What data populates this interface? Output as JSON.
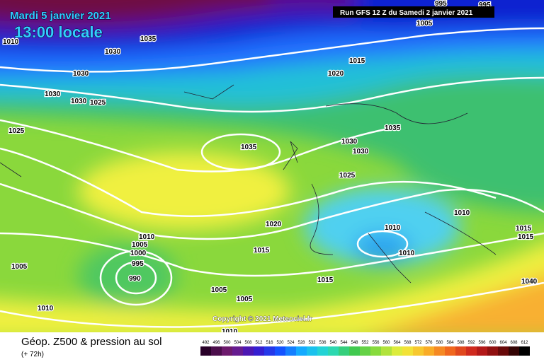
{
  "header": {
    "date": "Mardi 5 janvier 2021",
    "time": "13:00 locale",
    "run": "Run GFS 12 Z du Samedi 2 janvier 2021"
  },
  "isobar_labels": [
    "1010",
    "1035",
    "1030",
    "1030",
    "1030",
    "1030",
    "1025",
    "1025",
    "1005",
    "995",
    "995",
    "1015",
    "1020",
    "1035",
    "1035",
    "1030",
    "1030",
    "1025",
    "1020",
    "1015",
    "1010",
    "1010",
    "1010",
    "1015",
    "1015",
    "1010",
    "1005",
    "1000",
    "995",
    "990",
    "1005",
    "1005",
    "1005",
    "1010",
    "1010",
    "1015",
    "1040"
  ],
  "copyright": "Copyright © 2021 Meteociel.fr",
  "footer": {
    "title": "Géop. Z500 & pression au sol",
    "lead": "(+ 72h)"
  },
  "scale": [
    492,
    496,
    500,
    504,
    508,
    512,
    516,
    520,
    524,
    528,
    532,
    536,
    540,
    544,
    548,
    552,
    556,
    560,
    564,
    568,
    572,
    576,
    580,
    584,
    588,
    592,
    596,
    600,
    604,
    608,
    612
  ]
}
